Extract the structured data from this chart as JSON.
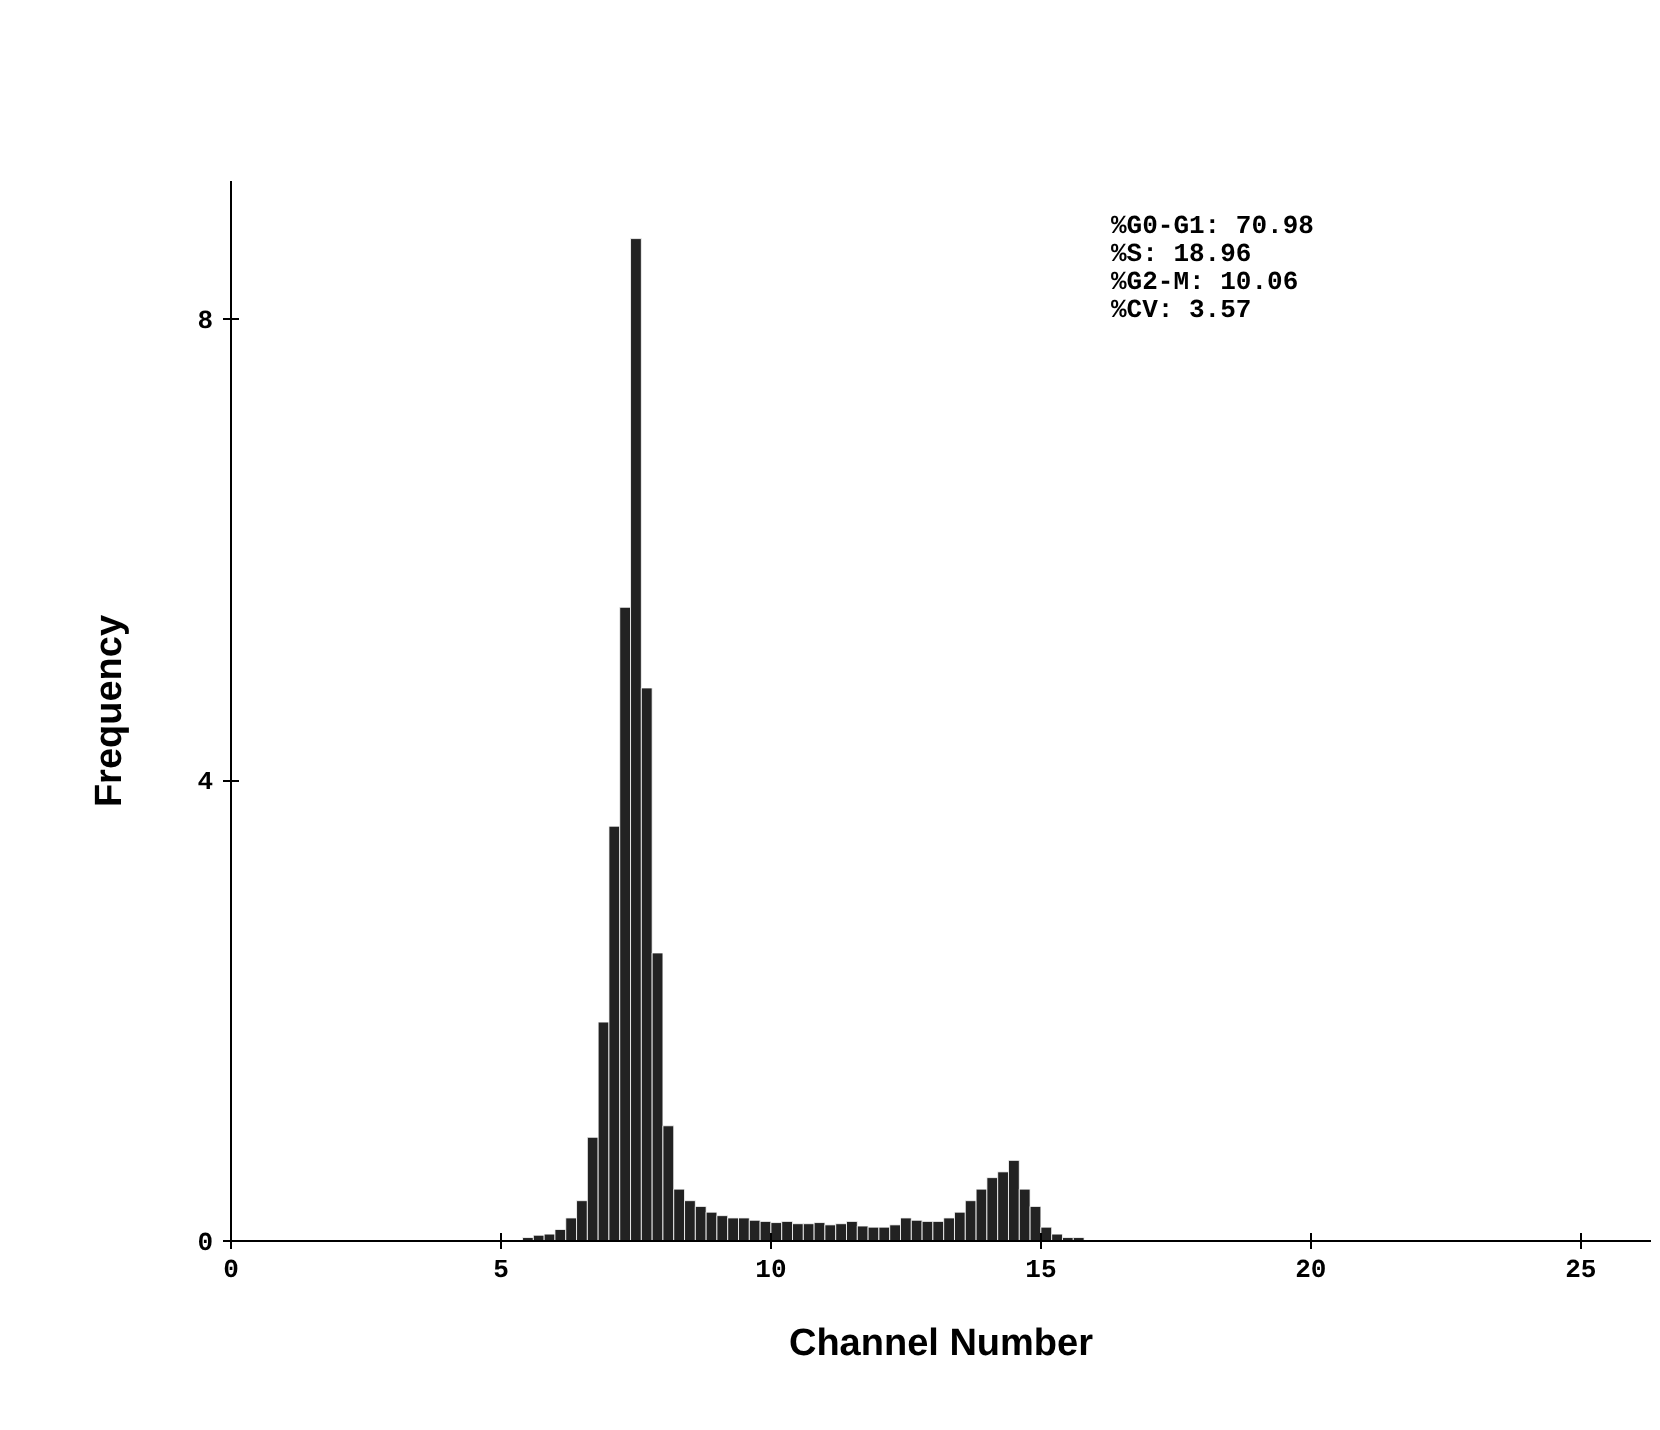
{
  "chart_data": {
    "type": "histogram",
    "xlabel": "Channel Number",
    "ylabel": "Frequency",
    "bins": [
      5.4,
      5.6,
      5.8,
      6.0,
      6.2,
      6.4,
      6.6,
      6.8,
      7.0,
      7.2,
      7.4,
      7.6,
      7.8,
      8.0,
      8.2,
      8.4,
      8.6,
      8.8,
      9.0,
      9.2,
      9.4,
      9.6,
      9.8,
      10.0,
      10.2,
      10.4,
      10.6,
      10.8,
      11.0,
      11.2,
      11.4,
      11.6,
      11.8,
      12.0,
      12.2,
      12.4,
      12.6,
      12.8,
      13.0,
      13.2,
      13.4,
      13.6,
      13.8,
      14.0,
      14.2,
      14.4,
      14.6,
      14.8,
      15.0,
      15.2,
      15.4,
      15.6,
      15.8
    ],
    "values": [
      0.03,
      0.05,
      0.06,
      0.1,
      0.2,
      0.35,
      0.9,
      1.9,
      3.6,
      5.5,
      8.7,
      4.8,
      2.5,
      1.0,
      0.45,
      0.35,
      0.3,
      0.25,
      0.22,
      0.2,
      0.2,
      0.18,
      0.17,
      0.16,
      0.17,
      0.15,
      0.15,
      0.16,
      0.14,
      0.15,
      0.17,
      0.13,
      0.12,
      0.12,
      0.14,
      0.2,
      0.18,
      0.17,
      0.17,
      0.2,
      0.25,
      0.35,
      0.45,
      0.55,
      0.6,
      0.7,
      0.45,
      0.3,
      0.12,
      0.06,
      0.03,
      0.03
    ],
    "color": "#222222",
    "xlim": [
      0,
      26.3
    ],
    "ylim": [
      0,
      9.2
    ],
    "xticks": [
      0,
      5,
      10,
      15,
      20,
      25
    ],
    "yticks": [
      0,
      4,
      8
    ],
    "grid": false,
    "annotations": [
      "%G0-G1: 70.98",
      "%S: 18.96",
      "%G2-M: 10.06",
      "%CV: 3.57"
    ]
  }
}
